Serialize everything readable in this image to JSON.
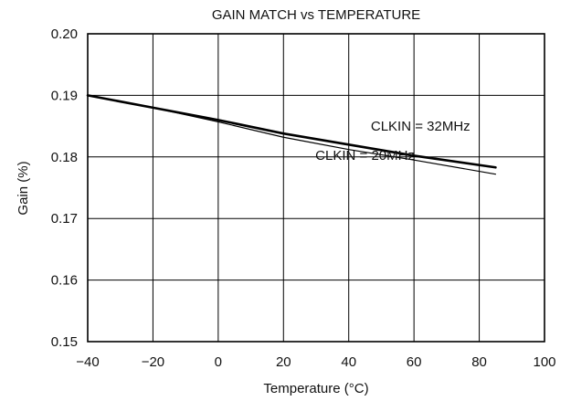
{
  "chart_data": {
    "type": "line",
    "title": "GAIN MATCH vs TEMPERATURE",
    "xlabel": "Temperature (°C)",
    "ylabel": "Gain (%)",
    "xlim": [
      -40,
      100
    ],
    "ylim": [
      0.15,
      0.2
    ],
    "xticks": [
      -40,
      -20,
      0,
      20,
      40,
      60,
      80,
      100
    ],
    "yticks": [
      0.15,
      0.16,
      0.17,
      0.18,
      0.19,
      0.2
    ],
    "x_tick_labels": [
      "−40",
      "−20",
      "0",
      "20",
      "40",
      "60",
      "80",
      "100"
    ],
    "y_tick_labels": [
      "0.15",
      "0.16",
      "0.17",
      "0.18",
      "0.19",
      "0.20"
    ],
    "grid": true,
    "series": [
      {
        "name": "CLKIN = 32MHz",
        "x": [
          -40,
          -20,
          0,
          20,
          40,
          60,
          85
        ],
        "y": [
          0.19,
          0.188,
          0.186,
          0.1838,
          0.182,
          0.1802,
          0.1783
        ]
      },
      {
        "name": "CLKIN = 20MHz",
        "x": [
          -40,
          -20,
          0,
          20,
          40,
          60,
          85
        ],
        "y": [
          0.19,
          0.188,
          0.1857,
          0.1832,
          0.1812,
          0.1795,
          0.1772
        ]
      }
    ],
    "annotations": [
      {
        "text": "CLKIN = 32MHz",
        "x": 62,
        "y": 0.1843
      },
      {
        "text": "CLKIN = 20MHz",
        "x": 45,
        "y": 0.1795
      }
    ]
  }
}
